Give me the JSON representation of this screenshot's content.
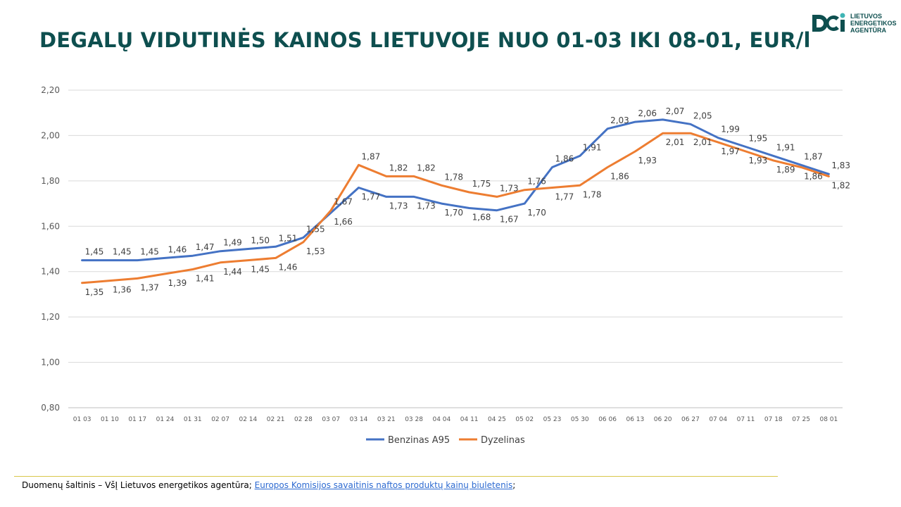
{
  "header": {
    "title": "DEGALŲ VIDUTINĖS KAINOS LIETUVOJE NUO 01-03 IKI 08-01, EUR/l"
  },
  "logo": {
    "lines": [
      "LIETUVOS",
      "ENERGETIKOS",
      "AGENTŪRA"
    ],
    "icon": "agency-logo-icon",
    "color": "#0e4f4f"
  },
  "chart_data": {
    "type": "line",
    "title": "",
    "xlabel": "",
    "ylabel": "",
    "ylim": [
      0.8,
      2.2
    ],
    "yticks": [
      "0,80",
      "1,00",
      "1,20",
      "1,40",
      "1,60",
      "1,80",
      "2,00",
      "2,20"
    ],
    "grid": true,
    "legend": "bottom",
    "categories": [
      "01 03",
      "01 10",
      "01 17",
      "01 24",
      "01 31",
      "02 07",
      "02 14",
      "02 21",
      "02 28",
      "03 07",
      "03 14",
      "03 21",
      "03 28",
      "04 04",
      "04 11",
      "04 25",
      "05 02",
      "05 23",
      "05 30",
      "06 06",
      "06 13",
      "06 20",
      "06 27",
      "07 04",
      "07 11",
      "07 18",
      "07 25",
      "08 01"
    ],
    "series": [
      {
        "name": "Benzinas A95",
        "color": "#4472c4",
        "values": [
          1.45,
          1.45,
          1.45,
          1.46,
          1.47,
          1.49,
          1.5,
          1.51,
          1.55,
          1.66,
          1.77,
          1.73,
          1.73,
          1.7,
          1.68,
          1.67,
          1.7,
          1.86,
          1.91,
          2.03,
          2.06,
          2.07,
          2.05,
          1.99,
          1.95,
          1.91,
          1.87,
          1.83
        ],
        "labels": [
          "1,45",
          "1,45",
          "1,45",
          "1,46",
          "1,47",
          "1,49",
          "1,50",
          "1,51",
          "1,55",
          "1,66",
          "1,77",
          "1,73",
          "1,73",
          "1,70",
          "1,68",
          "1,67",
          "1,70",
          "1,86",
          "1,91",
          "2,03",
          "2,06",
          "2,07",
          "2,05",
          "1,99",
          "1,95",
          "1,91",
          "1,87",
          "1,83"
        ]
      },
      {
        "name": "Dyzelinas",
        "color": "#ed7d31",
        "values": [
          1.35,
          1.36,
          1.37,
          1.39,
          1.41,
          1.44,
          1.45,
          1.46,
          1.53,
          1.67,
          1.87,
          1.82,
          1.82,
          1.78,
          1.75,
          1.73,
          1.76,
          1.77,
          1.78,
          1.86,
          1.93,
          2.01,
          2.01,
          1.97,
          1.93,
          1.89,
          1.86,
          1.82
        ],
        "labels": [
          "1,35",
          "1,36",
          "1,37",
          "1,39",
          "1,41",
          "1,44",
          "1,45",
          "1,46",
          "1,53",
          "1,67",
          "1,87",
          "1,82",
          "1,82",
          "1,78",
          "1,75",
          "1,73",
          "1,76",
          "1,77",
          "1,78",
          "1,86",
          "1,93",
          "2,01",
          "2,01",
          "1,97",
          "1,93",
          "1,89",
          "1,86",
          "1,82"
        ]
      }
    ]
  },
  "source": {
    "prefix": "Duomenų šaltinis – VšĮ Lietuvos energetikos agentūra; ",
    "link_text": "Europos Komisijos savaitinis naftos produktų kainų biuletenis",
    "suffix": ";"
  }
}
